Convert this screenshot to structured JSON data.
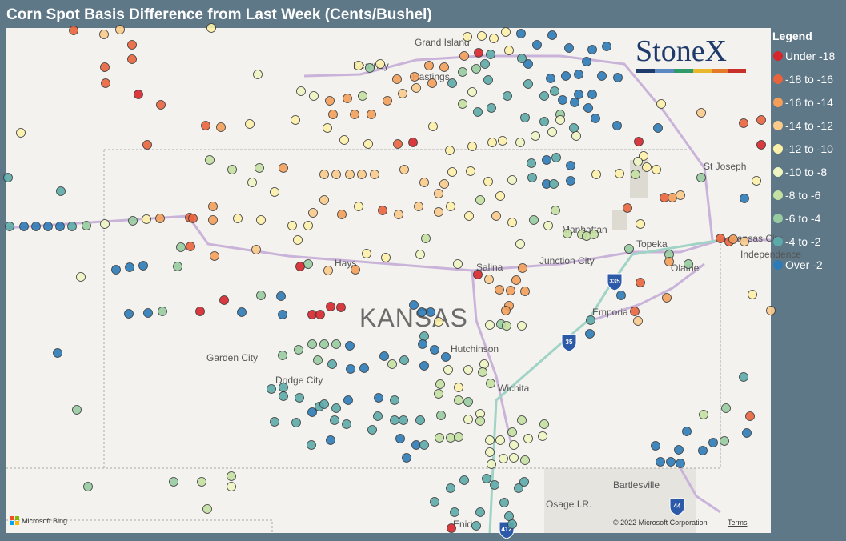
{
  "title": "Corn Spot Basis Difference from Last Week (Cents/Bushel)",
  "logo": "StoneX",
  "legend": {
    "title": "Legend",
    "items": [
      {
        "label": "Under -18",
        "color": "#d7262b"
      },
      {
        "label": "-18 to -16",
        "color": "#e9643d"
      },
      {
        "label": "-16 to -14",
        "color": "#f39e59"
      },
      {
        "label": "-14 to -12",
        "color": "#fbcb8c"
      },
      {
        "label": "-12 to -10",
        "color": "#fdf1a9"
      },
      {
        "label": "-10 to -8",
        "color": "#eef5c2"
      },
      {
        "label": "-8 to -6",
        "color": "#c4e0a2"
      },
      {
        "label": "-6 to -4",
        "color": "#97cba0"
      },
      {
        "label": "-4 to -2",
        "color": "#5baaa9"
      },
      {
        "label": "Over -2",
        "color": "#2c7bb8"
      }
    ]
  },
  "map_labels": [
    "Grand Island",
    "Kearney",
    "Hastings",
    "St Joseph",
    "Manhattan",
    "Topeka",
    "Junction City",
    "Kansas City",
    "Independence",
    "Olathe",
    "Hays",
    "Salina",
    "KANSAS",
    "Emporia",
    "Hutchinson",
    "Garden City",
    "Dodge City",
    "Wichita",
    "Bartlesville",
    "Osage I.R.",
    "Enid"
  ],
  "highway_shields": [
    "335",
    "35",
    "44",
    "412"
  ],
  "attribution": {
    "provider": "Microsoft Bing",
    "copyright": "© 2022 Microsoft Corporation",
    "terms": "Terms"
  }
}
